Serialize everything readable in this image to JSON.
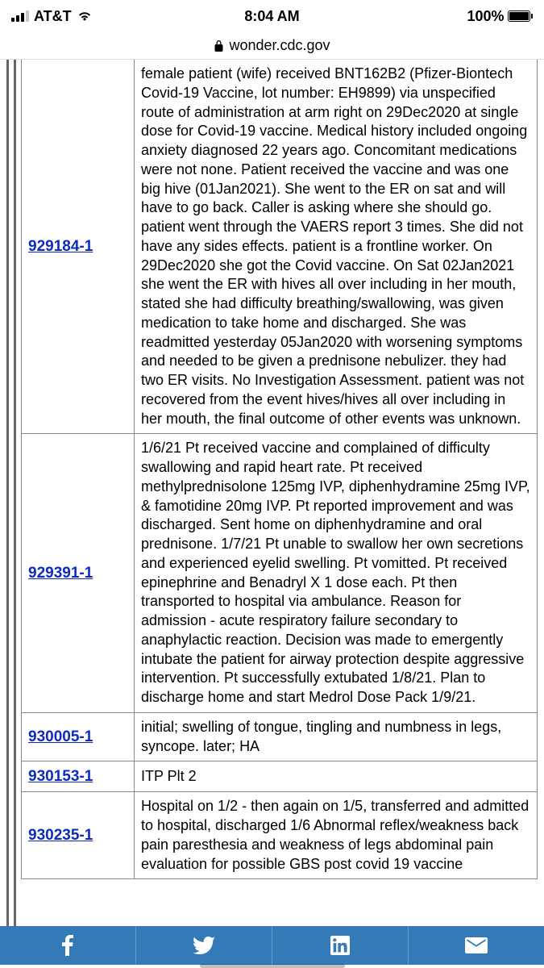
{
  "status": {
    "carrier": "AT&T",
    "time": "8:04 AM",
    "battery_pct": "100%"
  },
  "url": "wonder.cdc.gov",
  "colors": {
    "link": "#0f2bbf",
    "border": "#888888",
    "outer_border": "#666666",
    "bottom_bar": "#347ab7"
  },
  "rows": [
    {
      "id": "929184-1",
      "text": "female patient (wife) received BNT162B2 (Pfizer-Biontech Covid-19 Vaccine, lot number: EH9899) via unspecified route of administration at arm right on 29Dec2020 at single dose for Covid-19 vaccine. Medical history included ongoing anxiety diagnosed 22 years ago. Concomitant medications were not none. Patient received the vaccine and was one big hive (01Jan2021). She went to the ER on sat and will have to go back. Caller is asking where she should go. patient went through the VAERS report 3 times. She did not have any sides effects. patient is a frontline worker. On 29Dec2020 she got the Covid vaccine. On Sat 02Jan2021 she went the ER with hives all over including in her mouth, stated she had difficulty breathing/swallowing, was given medication to take home and discharged. She was readmitted yesterday 05Jan2020 with worsening symptoms and needed to be given a prednisone nebulizer. they had two ER visits. No Investigation Assessment. patient was not recovered from the event hives/hives all over including in her mouth, the final outcome of other events was unknown."
    },
    {
      "id": "929391-1",
      "text": "1/6/21 Pt received vaccine and complained of difficulty swallowing and rapid heart rate. Pt received methylprednisolone 125mg IVP, diphenhydramine 25mg IVP, & famotidine 20mg IVP. Pt reported improvement and was discharged. Sent home on diphenhydramine and oral prednisone. 1/7/21 Pt unable to swallow her own secretions and experienced eyelid swelling. Pt vomitted. Pt received epinephrine and Benadryl X 1 dose each. Pt then transported to hospital via ambulance. Reason for admission - acute respiratory failure secondary to anaphylactic reaction. Decision was made to emergently intubate the patient for airway protection despite aggressive intervention. Pt successfully extubated 1/8/21. Plan to discharge home and start Medrol Dose Pack 1/9/21."
    },
    {
      "id": "930005-1",
      "text": "initial; swelling of tongue, tingling and numbness in legs, syncope. later; HA"
    },
    {
      "id": "930153-1",
      "text": "ITP Plt 2"
    },
    {
      "id": "930235-1",
      "text": "Hospital on 1/2 - then again on 1/5, transferred and admitted to hospital, discharged 1/6 Abnormal reflex/weakness back pain paresthesia and weakness of legs abdominal pain evaluation for possible GBS post covid 19 vaccine"
    }
  ]
}
